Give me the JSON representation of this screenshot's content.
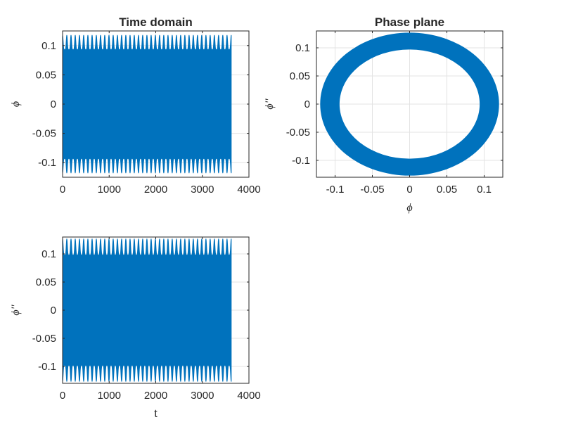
{
  "chart_data": [
    {
      "id": "time-phi",
      "type": "line",
      "title": "Time domain",
      "xlabel": "",
      "ylabel": "ϕ",
      "xlim": [
        0,
        4000
      ],
      "ylim": [
        -0.125,
        0.125
      ],
      "xticks": [
        0,
        1000,
        2000,
        3000,
        4000
      ],
      "xtick_labels": [
        "0",
        "1000",
        "2000",
        "3000",
        "4000"
      ],
      "yticks": [
        -0.1,
        -0.05,
        0,
        0.05,
        0.1
      ],
      "ytick_labels": [
        "-0.1",
        "-0.05",
        "0",
        "0.05",
        "0.1"
      ],
      "grid": true,
      "color": "#0072BD",
      "series": [
        {
          "signal_t_range": [
            0,
            3620
          ],
          "amplitude_max": 0.118,
          "amplitude_min": 0.093,
          "beat_cycles": 40
        }
      ]
    },
    {
      "id": "phase-plane",
      "type": "line",
      "title": "Phase plane",
      "xlabel": "ϕ",
      "ylabel": "ϕ''",
      "xlim": [
        -0.125,
        0.125
      ],
      "ylim": [
        -0.13,
        0.13
      ],
      "xticks": [
        -0.1,
        -0.05,
        0,
        0.05,
        0.1
      ],
      "xtick_labels": [
        "-0.1",
        "-0.05",
        "0",
        "0.05",
        "0.1"
      ],
      "yticks": [
        -0.1,
        -0.05,
        0,
        0.05,
        0.1
      ],
      "ytick_labels": [
        "-0.1",
        "-0.05",
        "0",
        "0.05",
        "0.1"
      ],
      "grid": true,
      "color": "#0072BD",
      "series": [
        {
          "ring_x_outer": 0.12,
          "ring_x_inner": 0.094,
          "ring_y_outer": 0.127,
          "ring_y_inner": 0.097
        }
      ]
    },
    {
      "id": "time-phidd",
      "type": "line",
      "title": "",
      "xlabel": "t",
      "ylabel": "ϕ''",
      "xlim": [
        0,
        4000
      ],
      "ylim": [
        -0.13,
        0.13
      ],
      "xticks": [
        0,
        1000,
        2000,
        3000,
        4000
      ],
      "xtick_labels": [
        "0",
        "1000",
        "2000",
        "3000",
        "4000"
      ],
      "yticks": [
        -0.1,
        -0.05,
        0,
        0.05,
        0.1
      ],
      "ytick_labels": [
        "-0.1",
        "-0.05",
        "0",
        "0.05",
        "0.1"
      ],
      "grid": true,
      "color": "#0072BD",
      "series": [
        {
          "signal_t_range": [
            0,
            3620
          ],
          "amplitude_max": 0.127,
          "amplitude_min": 0.098,
          "beat_cycles": 40
        }
      ]
    }
  ]
}
